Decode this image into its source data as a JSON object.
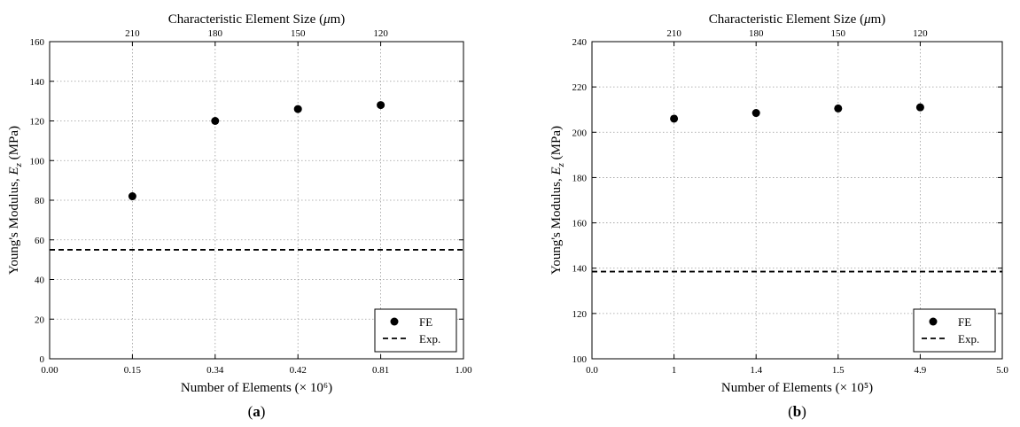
{
  "chart_data": [
    {
      "type": "scatter",
      "panel_label": "(a)",
      "title": "",
      "xlabel": "Number of Elements (× 10⁶)",
      "x2label": "Characteristic Element Size (μm)",
      "ylabel": "Young's Modulus, E_z (MPa)",
      "xlim": [
        0.0,
        1.0
      ],
      "ylim": [
        0,
        160
      ],
      "grid": true,
      "legend_position": "bottom-right",
      "x_tick_labels": [
        "0.00",
        "0.15",
        "0.34",
        "0.42",
        "0.81",
        "1.00"
      ],
      "y_ticks": [
        0,
        20,
        40,
        60,
        80,
        100,
        120,
        140,
        160
      ],
      "top_tick_labels": [
        "210",
        "180",
        "150",
        "120"
      ],
      "series": [
        {
          "name": "FE",
          "style": "marker",
          "x_tick_index": [
            1,
            2,
            3,
            4
          ],
          "y": [
            82,
            120,
            126,
            128
          ]
        },
        {
          "name": "Exp.",
          "style": "dashed-line",
          "y": 55
        }
      ]
    },
    {
      "type": "scatter",
      "panel_label": "(b)",
      "title": "",
      "xlabel": "Number of Elements (× 10⁵)",
      "x2label": "Characteristic Element Size (μm)",
      "ylabel": "Young's Modulus, E_z (MPa)",
      "xlim": [
        0.0,
        5.0
      ],
      "ylim": [
        100,
        240
      ],
      "grid": true,
      "legend_position": "bottom-right",
      "x_tick_labels": [
        "0.0",
        "1",
        "1.4",
        "1.5",
        "4.9",
        "5.0"
      ],
      "y_ticks": [
        100,
        120,
        140,
        160,
        180,
        200,
        220,
        240
      ],
      "top_tick_labels": [
        "210",
        "180",
        "150",
        "120"
      ],
      "series": [
        {
          "name": "FE",
          "style": "marker",
          "x_tick_index": [
            1,
            2,
            3,
            4
          ],
          "y": [
            206,
            208.5,
            210.5,
            211
          ]
        },
        {
          "name": "Exp.",
          "style": "dashed-line",
          "y": 138.5
        }
      ]
    }
  ]
}
